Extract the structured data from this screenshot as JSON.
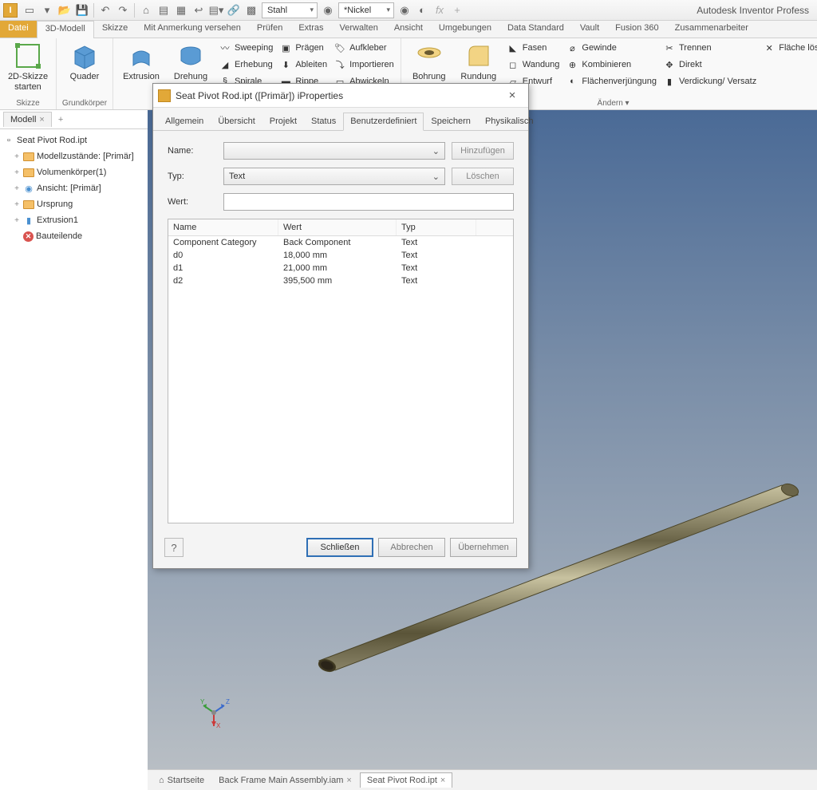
{
  "app": {
    "title": "Autodesk Inventor Profess"
  },
  "materials": {
    "m1": "Stahl",
    "m2": "*Nickel"
  },
  "tabs": {
    "file": "Datei",
    "items": [
      "3D-Modell",
      "Skizze",
      "Mit Anmerkung versehen",
      "Prüfen",
      "Extras",
      "Verwalten",
      "Ansicht",
      "Umgebungen",
      "Data Standard",
      "Vault",
      "Fusion 360",
      "Zusammenarbeiter"
    ],
    "active": 0
  },
  "ribbon": {
    "g1": {
      "label": "Skizze",
      "btn": "2D-Skizze starten"
    },
    "g2": {
      "label": "Grundkörper",
      "btn": "Quader"
    },
    "g3": {
      "big1": "Extrusion",
      "big2": "Drehung",
      "col": [
        "Sweeping",
        "Erhebung",
        "Spirale"
      ],
      "col2": [
        "Prägen",
        "Ableiten",
        "Rippe"
      ],
      "col3": [
        "Aufkleber",
        "Importieren",
        "Abwickeln"
      ]
    },
    "g4": {
      "big1": "Bohrung",
      "big2": "Rundung",
      "col": [
        "Fasen",
        "Wandung",
        "Entwurf"
      ],
      "col2": [
        "Gewinde",
        "Kombinieren",
        "Flächenverjüngung"
      ],
      "col3": [
        "Trennen",
        "Direkt",
        "Verdickung/ Versatz",
        "Fläche lös"
      ],
      "labelBtn": "Ändern ▾"
    }
  },
  "tree": {
    "tab": "Modell",
    "root": "Seat Pivot Rod.ipt",
    "items": [
      {
        "icon": "folder",
        "label": "Modellzustände: [Primär]"
      },
      {
        "icon": "folder",
        "label": "Volumenkörper(1)"
      },
      {
        "icon": "view",
        "label": "Ansicht: [Primär]"
      },
      {
        "icon": "folder",
        "label": "Ursprung"
      },
      {
        "icon": "ext",
        "label": "Extrusion1"
      },
      {
        "icon": "end",
        "label": "Bauteilende"
      }
    ]
  },
  "dialog": {
    "title": "Seat Pivot Rod.ipt ([Primär]) iProperties",
    "tabs": [
      "Allgemein",
      "Übersicht",
      "Projekt",
      "Status",
      "Benutzerdefiniert",
      "Speichern",
      "Physikalisch"
    ],
    "activeTab": 4,
    "labels": {
      "name": "Name:",
      "type": "Typ:",
      "value": "Wert:"
    },
    "typeValue": "Text",
    "btnAdd": "Hinzufügen",
    "btnDel": "Löschen",
    "headers": {
      "name": "Name",
      "value": "Wert",
      "type": "Typ"
    },
    "rows": [
      {
        "n": "Component Category",
        "v": "Back Component",
        "t": "Text"
      },
      {
        "n": "d0",
        "v": "18,000 mm",
        "t": "Text"
      },
      {
        "n": "d1",
        "v": "21,000 mm",
        "t": "Text"
      },
      {
        "n": "d2",
        "v": "395,500 mm",
        "t": "Text"
      }
    ],
    "btnClose": "Schließen",
    "btnCancel": "Abbrechen",
    "btnApply": "Übernehmen"
  },
  "docTabs": {
    "home": "Startseite",
    "t1": "Back Frame Main Assembly.iam",
    "t2": "Seat Pivot Rod.ipt"
  },
  "colors": {
    "accent": "#e2a838",
    "rod": "#8a8468",
    "rodHi": "#c8c2a0"
  }
}
